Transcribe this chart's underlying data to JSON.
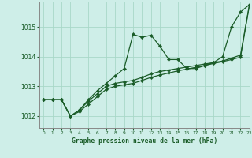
{
  "title": "Graphe pression niveau de la mer (hPa)",
  "background_color": "#ceeee8",
  "grid_color": "#a8d8c8",
  "line_color": "#1a5c28",
  "xlim": [
    -0.5,
    23
  ],
  "ylim": [
    1011.6,
    1015.85
  ],
  "yticks": [
    1012,
    1013,
    1014,
    1015
  ],
  "xtick_labels": [
    "0",
    "1",
    "2",
    "3",
    "4",
    "5",
    "6",
    "7",
    "8",
    "9",
    "10",
    "11",
    "12",
    "13",
    "14",
    "15",
    "16",
    "17",
    "18",
    "19",
    "20",
    "21",
    "22",
    "23"
  ],
  "series1_x": [
    0,
    1,
    2,
    3,
    4,
    5,
    6,
    7,
    8,
    9,
    10,
    11,
    12,
    13,
    14,
    15,
    16,
    17,
    18,
    19,
    20,
    21,
    22,
    23
  ],
  "series1_y": [
    1012.55,
    1012.55,
    1012.55,
    1012.0,
    1012.2,
    1012.55,
    1012.85,
    1013.1,
    1013.35,
    1013.6,
    1014.75,
    1014.65,
    1014.72,
    1014.35,
    1013.9,
    1013.9,
    1013.6,
    1013.6,
    1013.7,
    1013.8,
    1014.0,
    1015.0,
    1015.5,
    1015.75
  ],
  "series2_x": [
    0,
    1,
    2,
    3,
    4,
    5,
    6,
    7,
    8,
    9,
    10,
    11,
    12,
    13,
    14,
    15,
    16,
    17,
    18,
    19,
    20,
    21,
    22,
    23
  ],
  "series2_y": [
    1012.55,
    1012.55,
    1012.55,
    1012.0,
    1012.2,
    1012.5,
    1012.75,
    1013.0,
    1013.1,
    1013.15,
    1013.2,
    1013.3,
    1013.42,
    1013.5,
    1013.55,
    1013.6,
    1013.65,
    1013.7,
    1013.75,
    1013.8,
    1013.85,
    1013.95,
    1014.05,
    1015.75
  ],
  "series3_x": [
    0,
    1,
    2,
    3,
    4,
    5,
    6,
    7,
    8,
    9,
    10,
    11,
    12,
    13,
    14,
    15,
    16,
    17,
    18,
    19,
    20,
    21,
    22,
    23
  ],
  "series3_y": [
    1012.55,
    1012.55,
    1012.55,
    1012.0,
    1012.15,
    1012.4,
    1012.65,
    1012.9,
    1013.0,
    1013.05,
    1013.1,
    1013.2,
    1013.3,
    1013.38,
    1013.45,
    1013.52,
    1013.58,
    1013.64,
    1013.7,
    1013.77,
    1013.83,
    1013.9,
    1013.98,
    1015.75
  ]
}
